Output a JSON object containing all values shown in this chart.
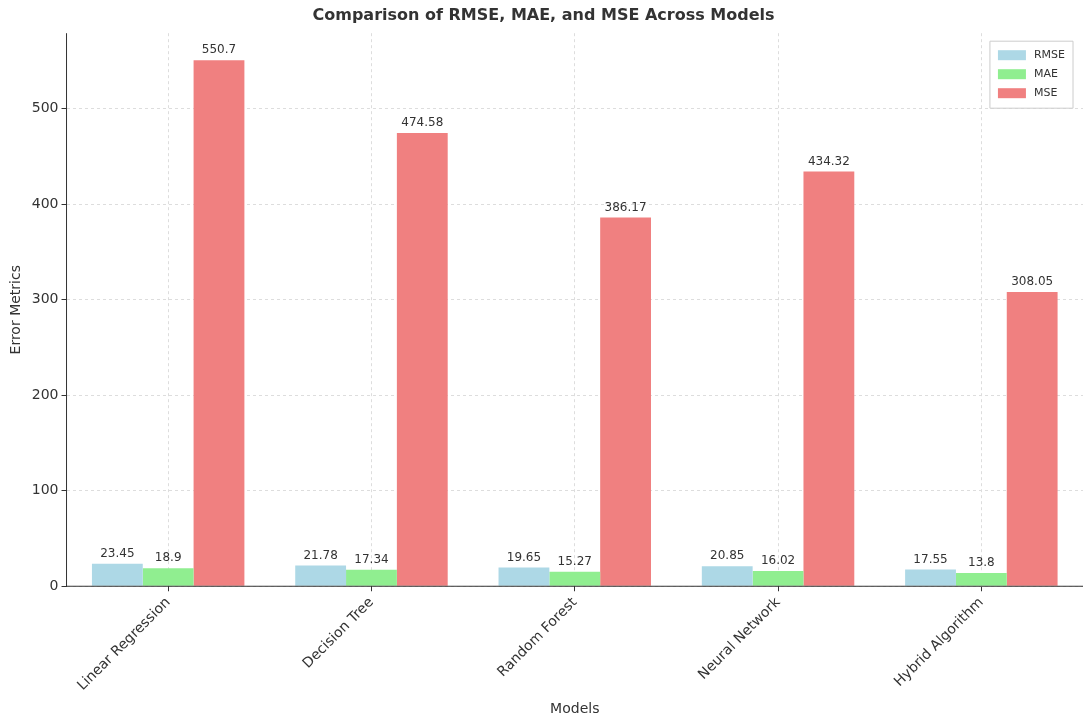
{
  "chart_data": {
    "type": "bar",
    "title": "Comparison of RMSE, MAE, and MSE Across Models",
    "xlabel": "Models",
    "ylabel": "Error Metrics",
    "categories": [
      "Linear Regression",
      "Decision Tree",
      "Random Forest",
      "Neural Network",
      "Hybrid Algorithm"
    ],
    "series": [
      {
        "name": "RMSE",
        "color": "#add8e6",
        "values": [
          23.45,
          21.78,
          19.65,
          20.85,
          17.55
        ]
      },
      {
        "name": "MAE",
        "color": "#90ee90",
        "values": [
          18.9,
          17.34,
          15.27,
          16.02,
          13.8
        ]
      },
      {
        "name": "MSE",
        "color": "#f08080",
        "values": [
          550.7,
          474.58,
          386.17,
          434.32,
          308.05
        ]
      }
    ],
    "ylim": [
      0,
      579
    ],
    "yticks": [
      0,
      100,
      200,
      300,
      400,
      500
    ],
    "grid": true,
    "legend": "top right",
    "data_labels": true
  }
}
